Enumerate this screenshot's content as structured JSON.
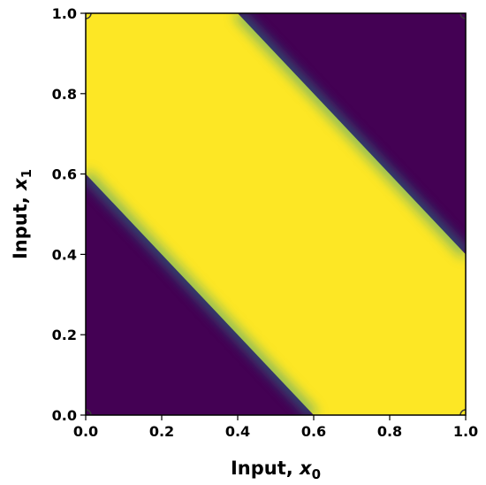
{
  "chart_data": {
    "type": "heatmap",
    "title": "",
    "xlabel": "Input, ",
    "xlabel_var": "x",
    "xlabel_sub": "0",
    "ylabel": "Input, ",
    "ylabel_var": "x",
    "ylabel_sub": "1",
    "xlim": [
      0.0,
      1.0
    ],
    "ylim": [
      0.0,
      1.0
    ],
    "xticks": [
      "0.0",
      "0.2",
      "0.4",
      "0.6",
      "0.8",
      "1.0"
    ],
    "yticks": [
      "0.0",
      "0.2",
      "0.4",
      "0.6",
      "0.8",
      "1.0"
    ],
    "grid": false,
    "colormap": "viridis",
    "colors": {
      "low": "#440154",
      "high": "#fde725",
      "mid": "#21918c"
    },
    "decision_function": {
      "description_of_regions": "high where 0.6 <= x0 + x1 <= 1.4, low elsewhere",
      "lower_boundary_sum": 0.6,
      "upper_boundary_sum": 1.4
    },
    "points": [
      {
        "x": 0.0,
        "y": 0.0
      },
      {
        "x": 0.0,
        "y": 1.0
      },
      {
        "x": 1.0,
        "y": 0.0
      },
      {
        "x": 1.0,
        "y": 1.0
      }
    ]
  }
}
